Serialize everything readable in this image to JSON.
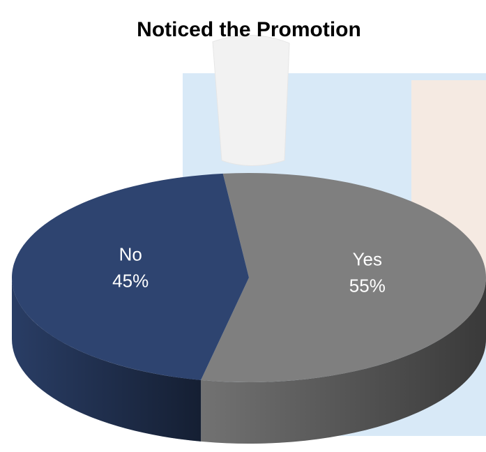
{
  "chart_data": {
    "type": "pie",
    "title": "Noticed the Promotion",
    "categories": [
      "Yes",
      "No"
    ],
    "values": [
      55,
      45
    ],
    "value_labels": [
      "55%",
      "45%"
    ],
    "colors": [
      "#7f7f7f",
      "#2e4470"
    ]
  }
}
